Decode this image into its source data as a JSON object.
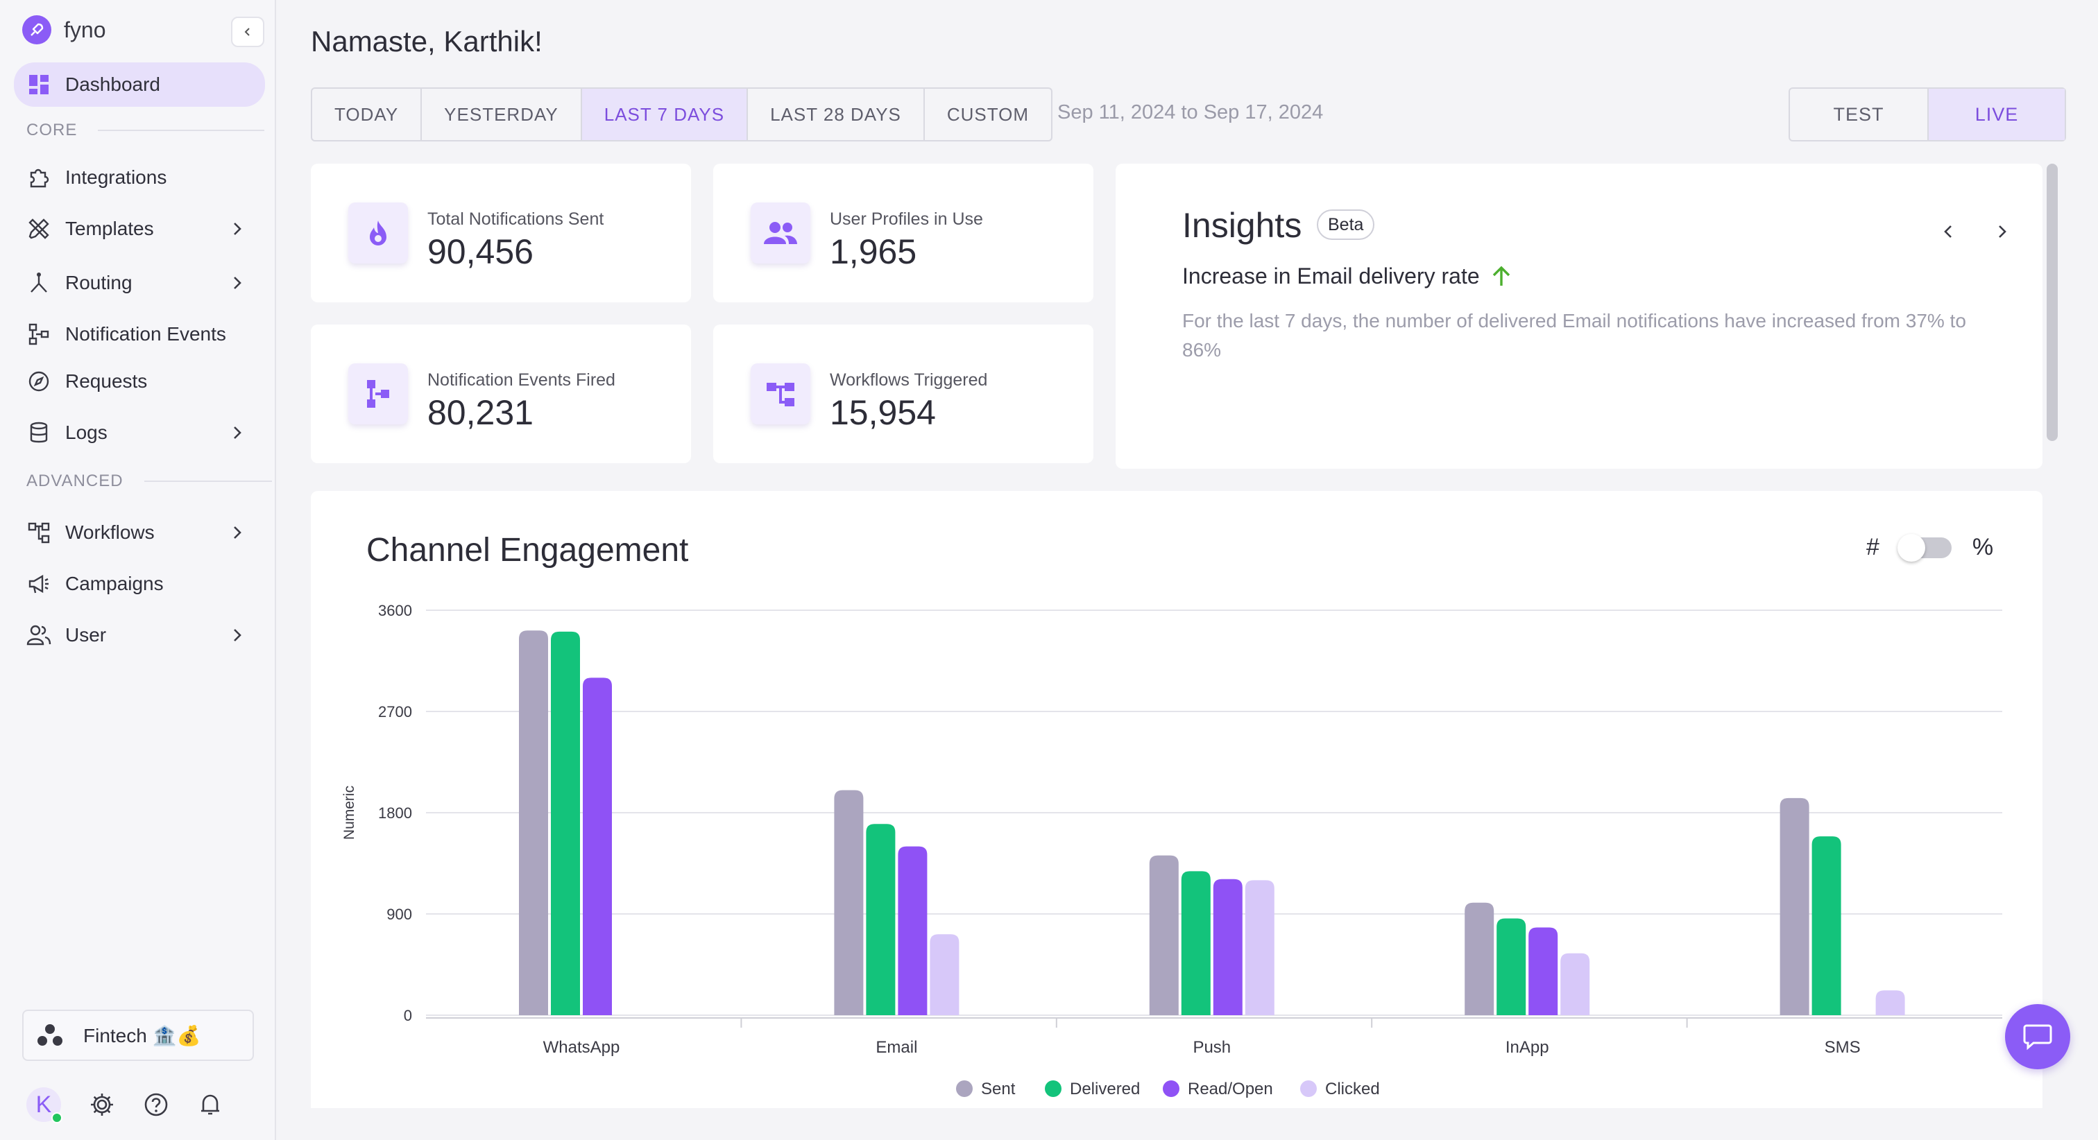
{
  "brand": {
    "name": "fyno"
  },
  "sidebar": {
    "dashboard": "Dashboard",
    "core_label": "CORE",
    "core_items": [
      {
        "label": "Integrations",
        "icon": "puzzle-icon"
      },
      {
        "label": "Templates",
        "icon": "templates-icon"
      },
      {
        "label": "Routing",
        "icon": "routing-icon"
      },
      {
        "label": "Notification Events",
        "icon": "events-icon"
      },
      {
        "label": "Requests",
        "icon": "compass-icon"
      },
      {
        "label": "Logs",
        "icon": "database-icon"
      }
    ],
    "advanced_label": "ADVANCED",
    "advanced_items": [
      {
        "label": "Workflows",
        "icon": "workflow-icon"
      },
      {
        "label": "Campaigns",
        "icon": "megaphone-icon"
      },
      {
        "label": "User",
        "icon": "users-icon"
      }
    ],
    "workspace": "Fintech 🏦💰",
    "avatar_letter": "K"
  },
  "header": {
    "greeting": "Namaste, Karthik!",
    "ranges": [
      "TODAY",
      "YESTERDAY",
      "LAST 7 DAYS",
      "LAST 28 DAYS",
      "CUSTOM"
    ],
    "selected_range": "LAST 7 DAYS",
    "date_range": "Sep 11, 2024 to Sep 17, 2024",
    "envs": [
      "TEST",
      "LIVE"
    ],
    "selected_env": "LIVE"
  },
  "stats": [
    {
      "label": "Total Notifications Sent",
      "value": "90,456",
      "icon": "flame-icon"
    },
    {
      "label": "User Profiles in Use",
      "value": "1,965",
      "icon": "users-icon"
    },
    {
      "label": "Notification Events Fired",
      "value": "80,231",
      "icon": "events-icon"
    },
    {
      "label": "Workflows Triggered",
      "value": "15,954",
      "icon": "workflow-icon"
    }
  ],
  "insights": {
    "title": "Insights",
    "badge": "Beta",
    "subtitle": "Increase in Email delivery rate",
    "body": "For the last 7 days, the number of delivered Email notifications have increased from 37% to 86%"
  },
  "chart": {
    "title": "Channel Engagement",
    "toggle_left": "#",
    "toggle_right": "%"
  },
  "colors": {
    "accent": "#8b5cf6",
    "sent": "#aba5bf",
    "delivered": "#13c37b",
    "read": "#8f52f5",
    "clicked": "#d7c8f9"
  },
  "chart_data": {
    "type": "bar",
    "categories": [
      "WhatsApp",
      "Email",
      "Push",
      "InApp",
      "SMS"
    ],
    "series": [
      {
        "name": "Sent",
        "values": [
          3420,
          2000,
          1420,
          1000,
          1930
        ]
      },
      {
        "name": "Delivered",
        "values": [
          3410,
          1700,
          1280,
          860,
          1590
        ]
      },
      {
        "name": "Read/Open",
        "values": [
          3000,
          1500,
          1210,
          780,
          0
        ]
      },
      {
        "name": "Clicked",
        "values": [
          0,
          720,
          1200,
          550,
          220
        ]
      }
    ],
    "ylabel": "Numeric",
    "ylim": [
      0,
      3600
    ],
    "yticks": [
      0,
      900,
      1800,
      2700,
      3600
    ],
    "legend": "bottom",
    "grid": true
  }
}
